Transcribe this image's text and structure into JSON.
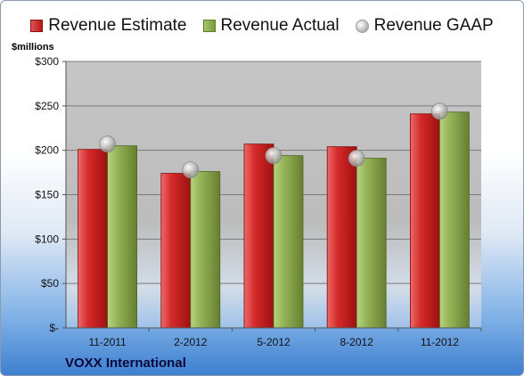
{
  "chart_data": {
    "type": "bar",
    "categories": [
      "11-2011",
      "2-2012",
      "5-2012",
      "8-2012",
      "11-2012"
    ],
    "series": [
      {
        "name": "Revenue Estimate",
        "values": [
          201,
          174,
          207,
          204,
          241
        ],
        "color": "#c62020"
      },
      {
        "name": "Revenue Actual",
        "values": [
          205,
          176,
          194,
          191,
          243
        ],
        "color": "#8aaa4f"
      },
      {
        "name": "Revenue GAAP",
        "type": "scatter",
        "values": [
          207,
          178,
          194,
          191,
          244
        ],
        "color": "#b8b8b8"
      }
    ],
    "ylabel": "$millions",
    "ylim": [
      0,
      300
    ],
    "yticks": [
      0,
      50,
      100,
      150,
      200,
      250,
      300
    ],
    "ytick_labels": [
      "$-",
      "$50",
      "$100",
      "$150",
      "$200",
      "$250",
      "$300"
    ],
    "grid": true,
    "legend_position": "top"
  },
  "company": "VOXX International"
}
